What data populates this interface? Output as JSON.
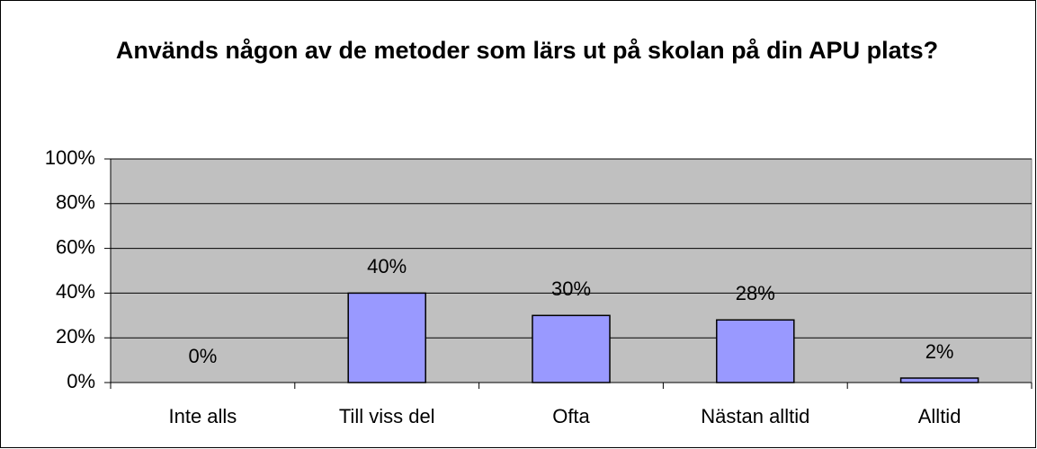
{
  "chart_data": {
    "type": "bar",
    "title": "Används någon av de metoder som lärs ut på skolan på din APU plats?",
    "categories": [
      "Inte alls",
      "Till viss del",
      "Ofta",
      "Nästan alltid",
      "Alltid"
    ],
    "values": [
      0,
      40,
      30,
      28,
      2
    ],
    "value_labels": [
      "0%",
      "40%",
      "30%",
      "28%",
      "2%"
    ],
    "color": "#9999ff",
    "ylim": [
      0,
      100
    ],
    "yticks": [
      {
        "value": 0,
        "label": "0%"
      },
      {
        "value": 20,
        "label": "20%"
      },
      {
        "value": 40,
        "label": "40%"
      },
      {
        "value": 60,
        "label": "60%"
      },
      {
        "value": 80,
        "label": "80%"
      },
      {
        "value": 100,
        "label": "100%"
      }
    ],
    "grid": true
  }
}
